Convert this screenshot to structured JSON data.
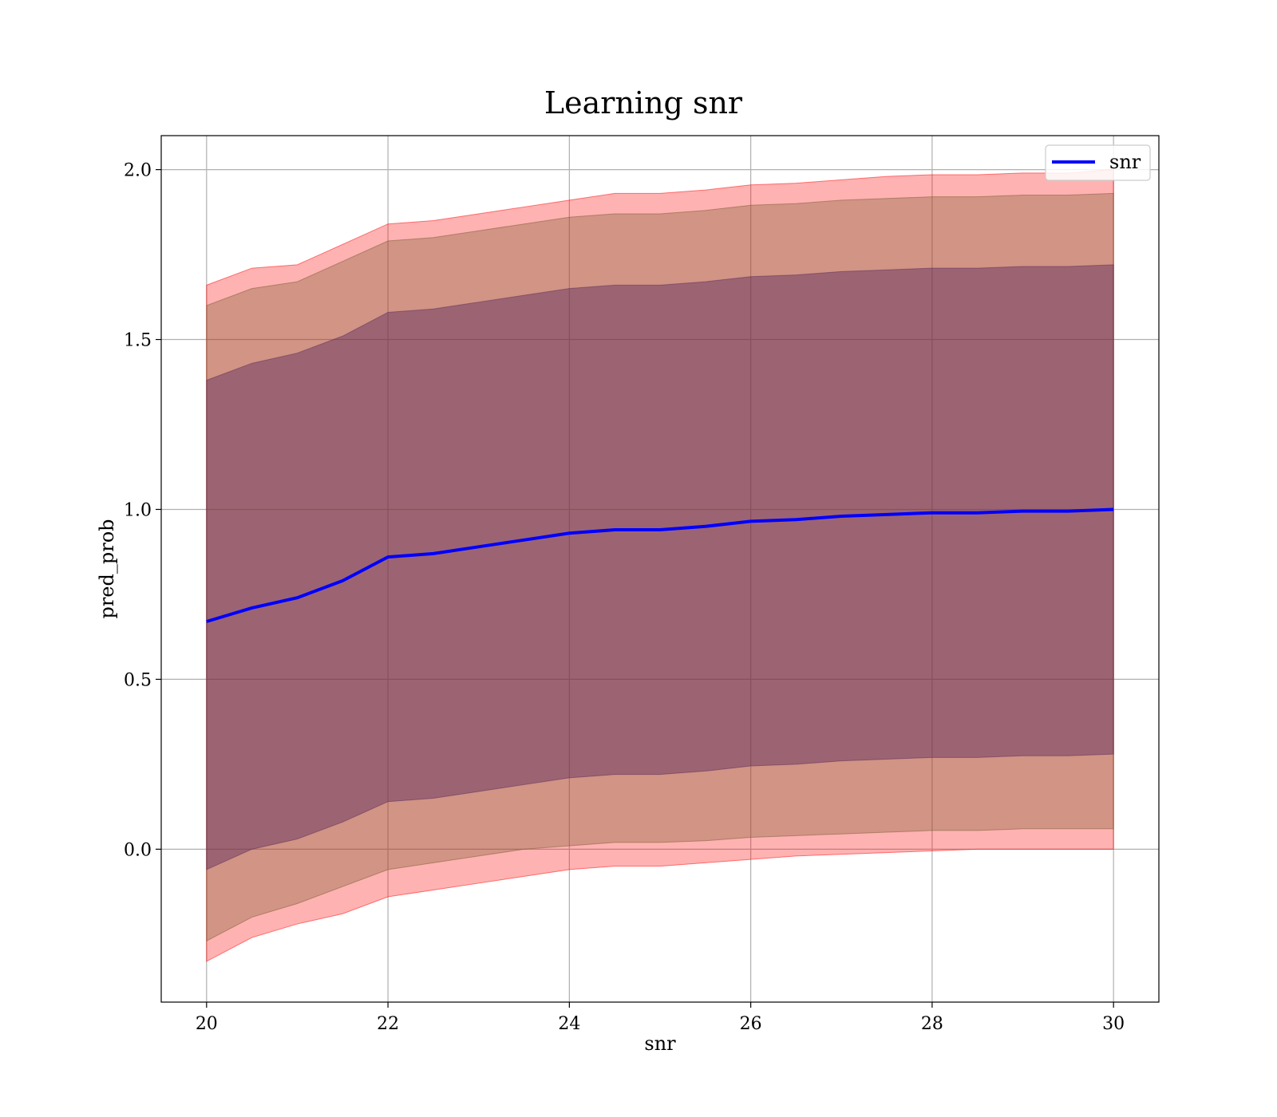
{
  "chart_data": {
    "type": "area",
    "title": "Learning snr",
    "xlabel": "snr",
    "ylabel": "pred_prob",
    "xlim": [
      19.5,
      30.5
    ],
    "ylim": [
      -0.45,
      2.1
    ],
    "xticks": [
      20,
      22,
      24,
      26,
      28,
      30
    ],
    "xtick_labels": [
      "20",
      "22",
      "24",
      "26",
      "28",
      "30"
    ],
    "yticks": [
      0.0,
      0.5,
      1.0,
      1.5,
      2.0
    ],
    "ytick_labels": [
      "0.0",
      "0.5",
      "1.0",
      "1.5",
      "2.0"
    ],
    "grid": true,
    "legend": {
      "placement": "top-right",
      "entries": [
        "snr"
      ]
    },
    "x": [
      20,
      20.5,
      21,
      21.5,
      22,
      22.5,
      23,
      23.5,
      24,
      24.5,
      25,
      25.5,
      26,
      26.5,
      27,
      27.5,
      28,
      28.5,
      29,
      29.5,
      30
    ],
    "series": [
      {
        "name": "snr",
        "color": "#0000ff",
        "values": [
          0.67,
          0.71,
          0.74,
          0.79,
          0.86,
          0.87,
          0.89,
          0.91,
          0.93,
          0.94,
          0.94,
          0.95,
          0.965,
          0.97,
          0.98,
          0.985,
          0.99,
          0.99,
          0.995,
          0.995,
          1.0
        ]
      }
    ],
    "bands": [
      {
        "color": "#ff0000",
        "opacity": 0.3,
        "lower": [
          -0.33,
          -0.26,
          -0.22,
          -0.19,
          -0.14,
          -0.12,
          -0.1,
          -0.08,
          -0.06,
          -0.05,
          -0.05,
          -0.04,
          -0.03,
          -0.02,
          -0.015,
          -0.01,
          -0.005,
          0.0,
          0.0,
          0.0,
          0.0
        ],
        "upper": [
          1.66,
          1.71,
          1.72,
          1.78,
          1.84,
          1.85,
          1.87,
          1.89,
          1.91,
          1.93,
          1.93,
          1.94,
          1.955,
          1.96,
          1.97,
          1.98,
          1.985,
          1.985,
          1.99,
          1.99,
          2.0
        ]
      },
      {
        "color": "#7a5c30",
        "opacity": 0.35,
        "lower": [
          -0.27,
          -0.2,
          -0.16,
          -0.11,
          -0.06,
          -0.04,
          -0.02,
          0.0,
          0.01,
          0.02,
          0.02,
          0.025,
          0.035,
          0.04,
          0.045,
          0.05,
          0.055,
          0.055,
          0.06,
          0.06,
          0.06
        ],
        "upper": [
          1.6,
          1.65,
          1.67,
          1.73,
          1.79,
          1.8,
          1.82,
          1.84,
          1.86,
          1.87,
          1.87,
          1.88,
          1.895,
          1.9,
          1.91,
          1.915,
          1.92,
          1.92,
          1.925,
          1.925,
          1.93
        ]
      },
      {
        "color": "#5a2a5a",
        "opacity": 0.45,
        "lower": [
          -0.06,
          0.0,
          0.03,
          0.08,
          0.14,
          0.15,
          0.17,
          0.19,
          0.21,
          0.22,
          0.22,
          0.23,
          0.245,
          0.25,
          0.26,
          0.265,
          0.27,
          0.27,
          0.275,
          0.275,
          0.28
        ],
        "upper": [
          1.38,
          1.43,
          1.46,
          1.51,
          1.58,
          1.59,
          1.61,
          1.63,
          1.65,
          1.66,
          1.66,
          1.67,
          1.685,
          1.69,
          1.7,
          1.705,
          1.71,
          1.71,
          1.715,
          1.715,
          1.72
        ]
      }
    ]
  }
}
